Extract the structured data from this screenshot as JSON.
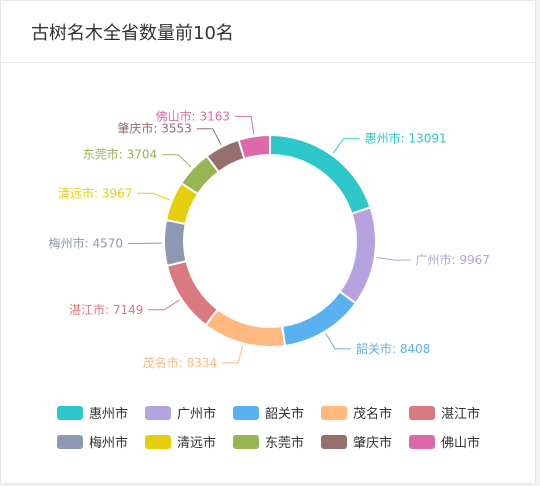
{
  "header": {
    "title": "古树名木全省数量前10名"
  },
  "chart_data": {
    "type": "pie",
    "title": "古树名木全省数量前10名",
    "donut": true,
    "legend_position": "bottom",
    "slices": [
      {
        "name": "惠州市",
        "value": 13091,
        "label": "惠州市: 13091",
        "color": "#2ec7c9"
      },
      {
        "name": "广州市",
        "value": 9967,
        "label": "广州市: 9967",
        "color": "#b6a2de"
      },
      {
        "name": "韶关市",
        "value": 8408,
        "label": "韶关市: 8408",
        "color": "#5ab1ef"
      },
      {
        "name": "茂名市",
        "value": 8334,
        "label": "茂名市: 8334",
        "color": "#ffb980"
      },
      {
        "name": "湛江市",
        "value": 7149,
        "label": "湛江市: 7149",
        "color": "#d87a80"
      },
      {
        "name": "梅州市",
        "value": 4570,
        "label": "梅州市: 4570",
        "color": "#8d98b3"
      },
      {
        "name": "清远市",
        "value": 3967,
        "label": "清远市: 3967",
        "color": "#e5cf0d"
      },
      {
        "name": "东莞市",
        "value": 3704,
        "label": "东莞市: 3704",
        "color": "#97b552"
      },
      {
        "name": "肇庆市",
        "value": 3553,
        "label": "肇庆市: 3553",
        "color": "#95706d"
      },
      {
        "name": "佛山市",
        "value": 3163,
        "label": "佛山市: 3163",
        "color": "#dc69aa"
      }
    ]
  }
}
